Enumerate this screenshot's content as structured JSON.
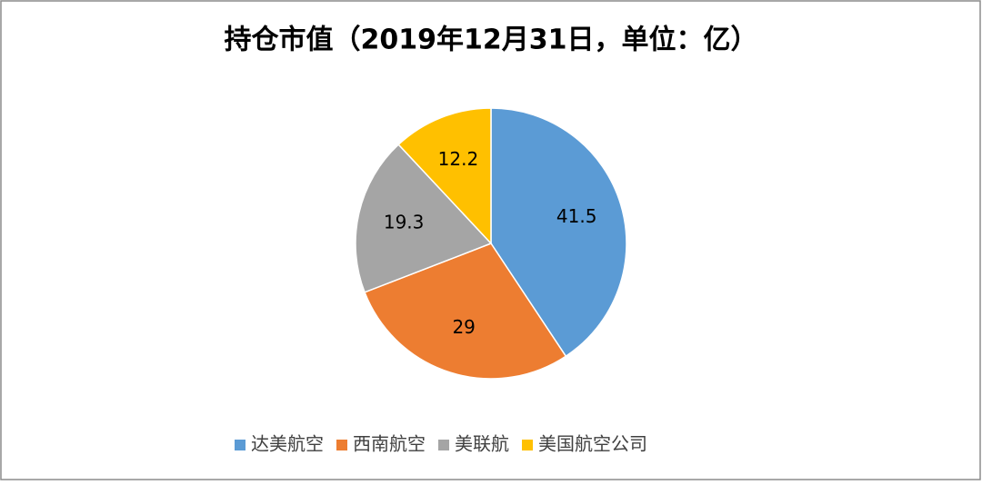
{
  "chart_data": {
    "type": "pie",
    "title": "持仓市值（2019年12月31日，单位：亿）",
    "categories": [
      "达美航空",
      "西南航空",
      "美联航",
      "美国航空公司"
    ],
    "values": [
      41.5,
      29,
      19.3,
      12.2
    ],
    "colors": [
      "#5b9bd5",
      "#ed7d31",
      "#a5a5a5",
      "#ffc000"
    ],
    "legend": "bottom"
  }
}
